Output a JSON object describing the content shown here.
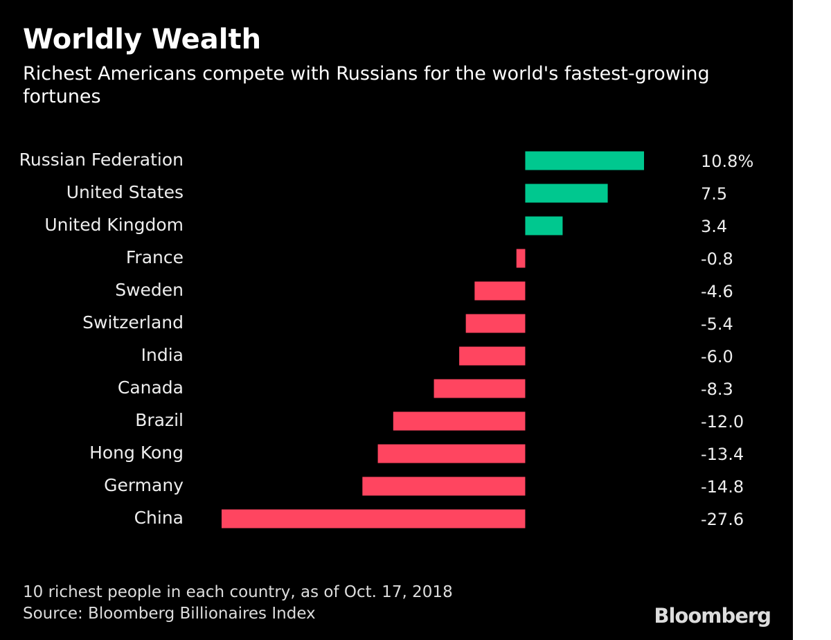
{
  "chart_data": {
    "type": "hbar",
    "title": "Worldly Wealth",
    "subtitle": "Richest Americans compete with Russians for the world's fastest-growing fortunes",
    "categories": [
      "Russian Federation",
      "United States",
      "United Kingdom",
      "France",
      "Sweden",
      "Switzerland",
      "India",
      "Canada",
      "Brazil",
      "Hong Kong",
      "Germany",
      "China"
    ],
    "values": [
      10.8,
      7.5,
      3.4,
      -0.8,
      -4.6,
      -5.4,
      -6.0,
      -8.3,
      -12.0,
      -13.4,
      -14.8,
      -27.6
    ],
    "value_labels": [
      "10.8%",
      "7.5",
      "3.4",
      "-0.8",
      "-4.6",
      "-5.4",
      "-6.0",
      "-8.3",
      "-12.0",
      "-13.4",
      "-14.8",
      "-27.6"
    ],
    "positive_color": "#00c88f",
    "negative_color": "#ff4560",
    "notes": [
      "10 richest people in each country, as of Oct. 17, 2018",
      "Source: Bloomberg Billionaires Index"
    ],
    "brand": "Bloomberg"
  }
}
